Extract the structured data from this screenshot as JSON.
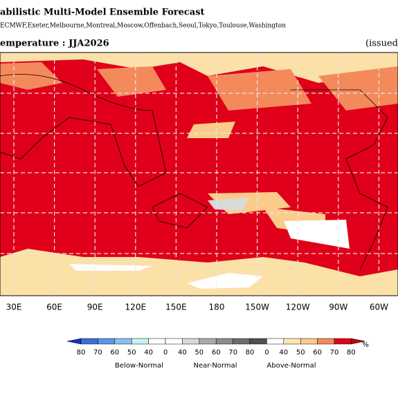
{
  "header": {
    "title": "abilistic Multi-Model Ensemble Forecast",
    "subtitle": "ECMWF,Exeter,Melbourne,Montreal,Moscow,Offenbach,Seoul,Tokyo,Toulouse,Washington"
  },
  "map": {
    "title": "emperature : JJA2026",
    "issued": "(issued",
    "lon_labels": [
      "30E",
      "60E",
      "90E",
      "120E",
      "150E",
      "180",
      "150W",
      "120W",
      "90W",
      "60W"
    ]
  },
  "legend": {
    "unit": "%",
    "ticks": [
      "80",
      "70",
      "60",
      "50",
      "40",
      "0",
      "40",
      "50",
      "60",
      "70",
      "80",
      "0",
      "40",
      "50",
      "60",
      "70",
      "80"
    ],
    "colors": [
      "#3a6fd8",
      "#5a96e6",
      "#87c1f0",
      "#c8f2f2",
      "#ffffff",
      "#ffffff",
      "#d9d9d9",
      "#a9a9a9",
      "#8c8c8c",
      "#6e6e6e",
      "#505050",
      "#ffffff",
      "#fbe7b5",
      "#fbcb8a",
      "#f48a5c",
      "#e0001a"
    ],
    "low_color": "#1a2fc0",
    "high_color": "#c00010",
    "groups": [
      "Below-Normal",
      "Near-Normal",
      "Above-Normal"
    ]
  }
}
